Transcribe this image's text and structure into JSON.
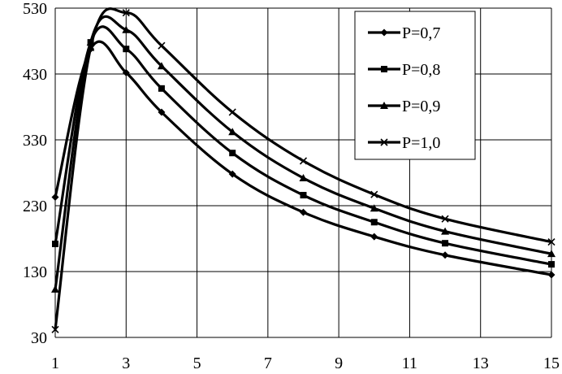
{
  "chart_data": {
    "type": "line",
    "title": "",
    "xlabel": "",
    "ylabel": "",
    "xlim": [
      1,
      15
    ],
    "ylim": [
      30,
      530
    ],
    "x_ticks": [
      1,
      3,
      5,
      7,
      9,
      11,
      13,
      15
    ],
    "x_tick_labels": [
      "1",
      "3",
      "5",
      "7",
      "9",
      "11",
      "13",
      "15"
    ],
    "y_ticks": [
      30,
      130,
      230,
      330,
      430,
      530
    ],
    "y_tick_labels": [
      "30",
      "130",
      "230",
      "330",
      "430",
      "530"
    ],
    "grid": true,
    "legend_position": "top-right",
    "series": [
      {
        "name": "P=0,7",
        "marker": "diamond",
        "x": [
          1,
          2,
          3,
          4,
          6,
          8,
          10,
          12,
          15
        ],
        "y": [
          243,
          468,
          432,
          372,
          278,
          220,
          183,
          155,
          125
        ]
      },
      {
        "name": "P=0,8",
        "marker": "square",
        "x": [
          1,
          2,
          3,
          4,
          6,
          8,
          10,
          12,
          15
        ],
        "y": [
          172,
          478,
          468,
          408,
          310,
          246,
          205,
          173,
          141
        ]
      },
      {
        "name": "P=0,9",
        "marker": "triangle",
        "x": [
          1,
          2,
          3,
          4,
          6,
          8,
          10,
          12,
          15
        ],
        "y": [
          103,
          478,
          497,
          442,
          342,
          272,
          226,
          191,
          157
        ]
      },
      {
        "name": "P=1,0",
        "marker": "cross",
        "x": [
          1,
          2,
          3,
          4,
          6,
          8,
          10,
          12,
          15
        ],
        "y": [
          42,
          470,
          523,
          473,
          372,
          298,
          247,
          210,
          175
        ]
      }
    ]
  }
}
